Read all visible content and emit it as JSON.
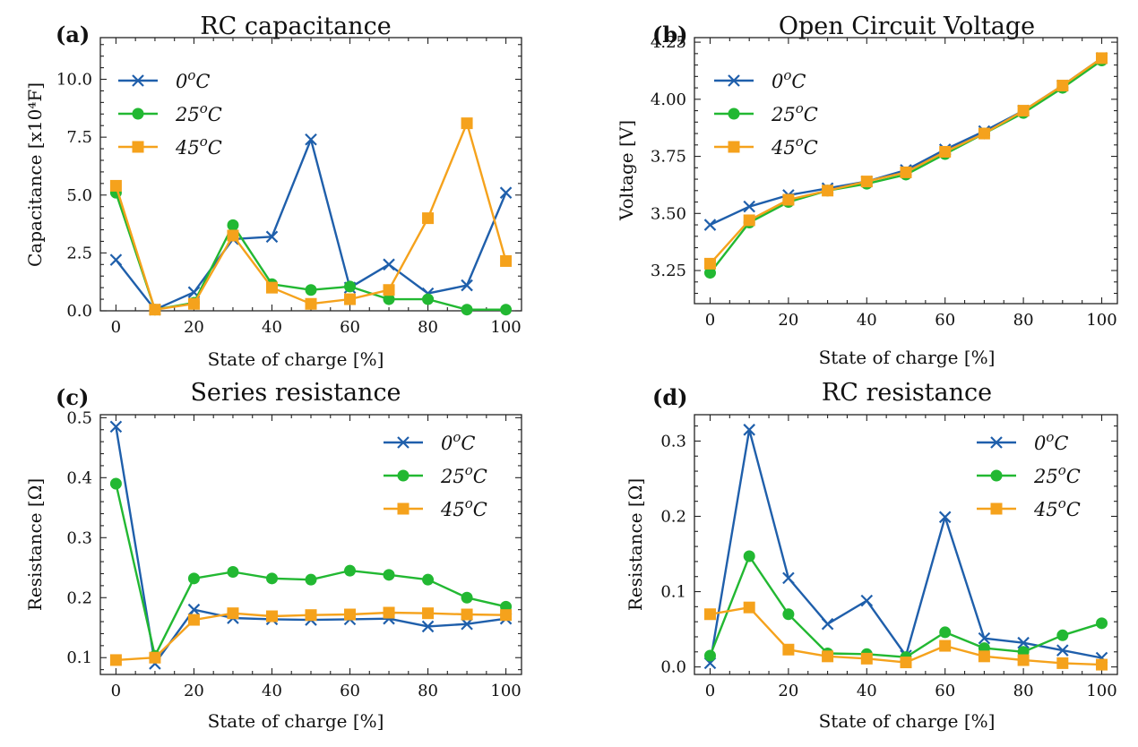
{
  "colors": {
    "c0": "#1f5fab",
    "c25": "#22b832",
    "c45": "#f5a21c"
  },
  "chart_data": [
    {
      "type": "line",
      "panel": "(a)",
      "title": "RC capacitance",
      "xlabel": "State of charge [%]",
      "ylabel": "Capacitance [x10⁴F]",
      "xlim": [
        -4,
        104
      ],
      "ylim": [
        0,
        11.8
      ],
      "xticks": [
        0,
        20,
        40,
        60,
        80,
        100
      ],
      "xtick_labels": [
        "0",
        "20",
        "40",
        "60",
        "80",
        "100"
      ],
      "yticks": [
        0,
        2.5,
        5.0,
        7.5,
        10.0
      ],
      "ytick_labels": [
        "0.0",
        "2.5",
        "5.0",
        "7.5",
        "10.0"
      ],
      "legend_position": "upper-left",
      "x": [
        0,
        10,
        20,
        30,
        40,
        50,
        60,
        70,
        80,
        90,
        100
      ],
      "series": [
        {
          "name": "0ºC",
          "base": "0",
          "sup": "o",
          "marker": "x",
          "color_key": "c0",
          "values": [
            2.2,
            0.05,
            0.8,
            3.1,
            3.2,
            7.4,
            1.0,
            2.0,
            0.75,
            1.1,
            5.1
          ]
        },
        {
          "name": "25ºC",
          "base": "25",
          "sup": "o",
          "marker": "circle",
          "color_key": "c25",
          "values": [
            5.1,
            0.05,
            0.35,
            3.7,
            1.15,
            0.9,
            1.05,
            0.5,
            0.5,
            0.05,
            0.05
          ]
        },
        {
          "name": "45ºC",
          "base": "45",
          "sup": "o",
          "marker": "square",
          "color_key": "c45",
          "values": [
            5.4,
            0.05,
            0.3,
            3.25,
            1.0,
            0.3,
            0.5,
            0.9,
            4.0,
            8.1,
            2.15
          ]
        }
      ]
    },
    {
      "type": "line",
      "panel": "(b)",
      "title": "Open Circuit Voltage",
      "xlabel": "State of charge [%]",
      "ylabel": "Voltage [V]",
      "xlim": [
        -4,
        104
      ],
      "ylim": [
        3.105,
        4.27
      ],
      "xticks": [
        0,
        20,
        40,
        60,
        80,
        100
      ],
      "xtick_labels": [
        "0",
        "20",
        "40",
        "60",
        "80",
        "100"
      ],
      "yticks": [
        3.25,
        3.5,
        3.75,
        4.0,
        4.25
      ],
      "ytick_labels": [
        "3.25",
        "3.50",
        "3.75",
        "4.00",
        "4.25"
      ],
      "legend_position": "upper-left",
      "x": [
        0,
        10,
        20,
        30,
        40,
        50,
        60,
        70,
        80,
        90,
        100
      ],
      "series": [
        {
          "name": "0ºC",
          "base": "0",
          "sup": "o",
          "marker": "x",
          "color_key": "c0",
          "values": [
            3.45,
            3.53,
            3.58,
            3.61,
            3.64,
            3.69,
            3.78,
            3.86,
            3.95,
            4.06,
            4.18
          ]
        },
        {
          "name": "25ºC",
          "base": "25",
          "sup": "o",
          "marker": "circle",
          "color_key": "c25",
          "values": [
            3.24,
            3.46,
            3.55,
            3.6,
            3.63,
            3.67,
            3.76,
            3.85,
            3.94,
            4.05,
            4.17
          ]
        },
        {
          "name": "45ºC",
          "base": "45",
          "sup": "o",
          "marker": "square",
          "color_key": "c45",
          "values": [
            3.28,
            3.47,
            3.56,
            3.6,
            3.64,
            3.68,
            3.77,
            3.85,
            3.95,
            4.06,
            4.18
          ]
        }
      ]
    },
    {
      "type": "line",
      "panel": "(c)",
      "title": "Series resistance",
      "xlabel": "State of charge [%]",
      "ylabel": "Resistance [Ω]",
      "xlim": [
        -4,
        104
      ],
      "ylim": [
        0.072,
        0.505
      ],
      "xticks": [
        0,
        20,
        40,
        60,
        80,
        100
      ],
      "xtick_labels": [
        "0",
        "20",
        "40",
        "60",
        "80",
        "100"
      ],
      "yticks": [
        0.1,
        0.2,
        0.3,
        0.4,
        0.5
      ],
      "ytick_labels": [
        "0.1",
        "0.2",
        "0.3",
        "0.4",
        "0.5"
      ],
      "legend_position": "upper-right",
      "x": [
        0,
        10,
        20,
        30,
        40,
        50,
        60,
        70,
        80,
        90,
        100
      ],
      "series": [
        {
          "name": "0ºC",
          "base": "0",
          "sup": "o",
          "marker": "x",
          "color_key": "c0",
          "values": [
            0.485,
            0.09,
            0.18,
            0.166,
            0.164,
            0.163,
            0.164,
            0.165,
            0.152,
            0.156,
            0.165
          ]
        },
        {
          "name": "25ºC",
          "base": "25",
          "sup": "o",
          "marker": "circle",
          "color_key": "c25",
          "values": [
            0.39,
            0.103,
            0.232,
            0.243,
            0.232,
            0.23,
            0.245,
            0.238,
            0.23,
            0.2,
            0.185
          ]
        },
        {
          "name": "45ºC",
          "base": "45",
          "sup": "o",
          "marker": "square",
          "color_key": "c45",
          "values": [
            0.096,
            0.1,
            0.163,
            0.174,
            0.169,
            0.171,
            0.172,
            0.175,
            0.174,
            0.172,
            0.171
          ]
        }
      ]
    },
    {
      "type": "line",
      "panel": "(d)",
      "title": "RC resistance",
      "xlabel": "State of charge [%]",
      "ylabel": "Resistance [Ω]",
      "xlim": [
        -4,
        104
      ],
      "ylim": [
        -0.01,
        0.335
      ],
      "xticks": [
        0,
        20,
        40,
        60,
        80,
        100
      ],
      "xtick_labels": [
        "0",
        "20",
        "40",
        "60",
        "80",
        "100"
      ],
      "yticks": [
        0.0,
        0.1,
        0.2,
        0.3
      ],
      "ytick_labels": [
        "0.0",
        "0.1",
        "0.2",
        "0.3"
      ],
      "legend_position": "upper-right",
      "x": [
        0,
        10,
        20,
        30,
        40,
        50,
        60,
        70,
        80,
        90,
        100
      ],
      "series": [
        {
          "name": "0ºC",
          "base": "0",
          "sup": "o",
          "marker": "x",
          "color_key": "c0",
          "values": [
            0.005,
            0.315,
            0.118,
            0.057,
            0.088,
            0.015,
            0.199,
            0.038,
            0.032,
            0.022,
            0.012
          ]
        },
        {
          "name": "25ºC",
          "base": "25",
          "sup": "o",
          "marker": "circle",
          "color_key": "c25",
          "values": [
            0.015,
            0.147,
            0.07,
            0.018,
            0.017,
            0.013,
            0.046,
            0.025,
            0.02,
            0.042,
            0.058
          ]
        },
        {
          "name": "45ºC",
          "base": "45",
          "sup": "o",
          "marker": "square",
          "color_key": "c45",
          "values": [
            0.07,
            0.079,
            0.023,
            0.014,
            0.011,
            0.006,
            0.028,
            0.014,
            0.009,
            0.005,
            0.003
          ]
        }
      ]
    }
  ]
}
